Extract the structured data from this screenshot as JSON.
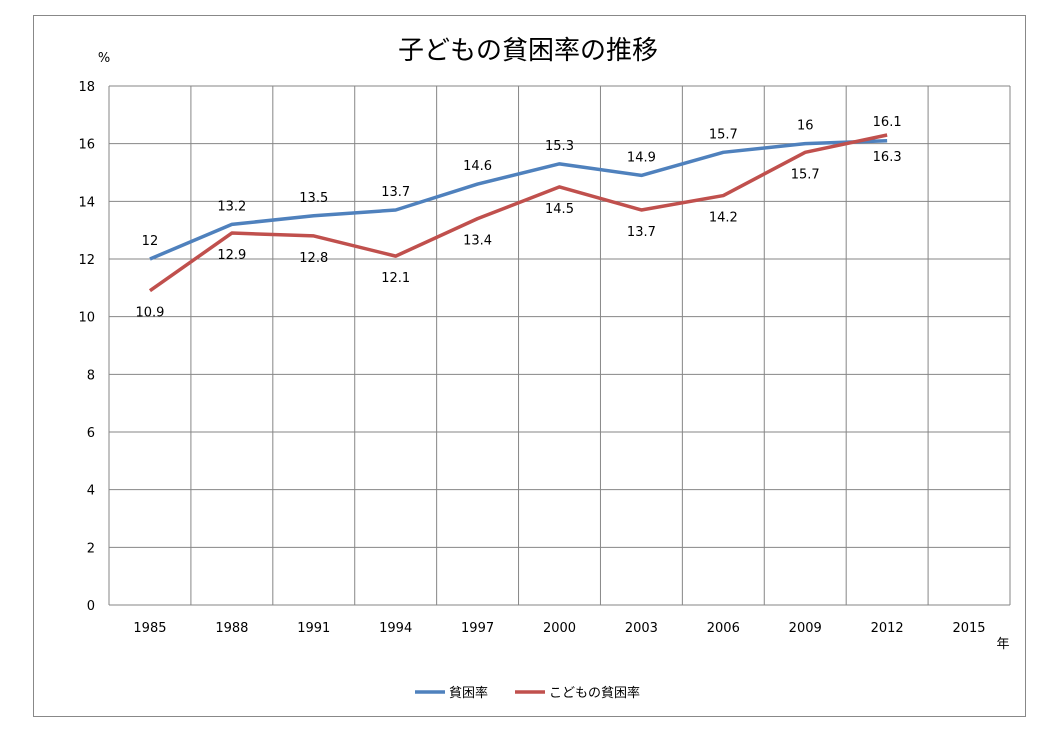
{
  "chart_data": {
    "type": "line",
    "title": "子どもの貧困率の推移",
    "ylabel": "%",
    "xlabel": "年",
    "categories": [
      "1985",
      "1988",
      "1991",
      "1994",
      "1997",
      "2000",
      "2003",
      "2006",
      "2009",
      "2012",
      "2015"
    ],
    "ylim": [
      0,
      18
    ],
    "yticks": [
      0,
      2,
      4,
      6,
      8,
      10,
      12,
      14,
      16,
      18
    ],
    "grid": true,
    "legend_position": "bottom",
    "series": [
      {
        "name": "貧困率",
        "color": "#4F81BD",
        "values": [
          12,
          13.2,
          13.5,
          13.7,
          14.6,
          15.3,
          14.9,
          15.7,
          16,
          16.1,
          null
        ],
        "data_labels": [
          "12",
          "13.2",
          "13.5",
          "13.7",
          "14.6",
          "15.3",
          "14.9",
          "15.7",
          "16",
          "16.1",
          ""
        ]
      },
      {
        "name": "こどもの貧困率",
        "color": "#C0504D",
        "values": [
          10.9,
          12.9,
          12.8,
          12.1,
          13.4,
          14.5,
          13.7,
          14.2,
          15.7,
          16.3,
          null
        ],
        "data_labels": [
          "10.9",
          "12.9",
          "12.8",
          "12.1",
          "13.4",
          "14.5",
          "13.7",
          "14.2",
          "15.7",
          "16.3",
          ""
        ]
      }
    ]
  }
}
